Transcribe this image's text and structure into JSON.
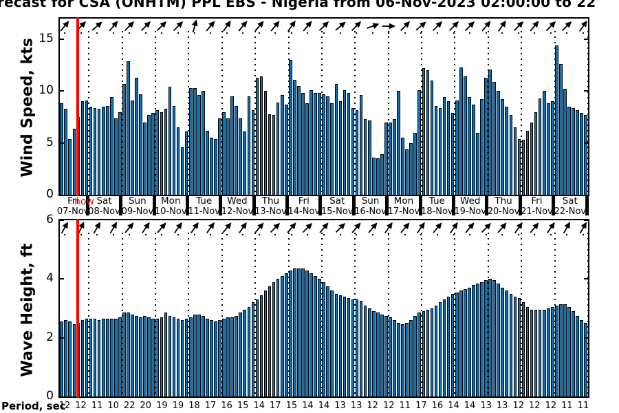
{
  "title": "recast for CSA (ONHTM) PPL EBS  - Nigeria from 06-Nov-2023 02:00:00 to 22",
  "now_marker": {
    "label": "now",
    "color": "#ff0000"
  },
  "colors": {
    "bar_fill": "#0e72b5",
    "bar_edge": "#000000",
    "axis": "#000000",
    "now_line": "#ff0000",
    "background": "#ffffff"
  },
  "x_axis": {
    "day_labels": [
      {
        "weekday": "Fri",
        "date": "07-Nov"
      },
      {
        "weekday": "Sat",
        "date": "08-Nov"
      },
      {
        "weekday": "Sun",
        "date": "09-Nov"
      },
      {
        "weekday": "Mon",
        "date": "10-Nov"
      },
      {
        "weekday": "Tue",
        "date": "11-Nov"
      },
      {
        "weekday": "Wed",
        "date": "12-Nov"
      },
      {
        "weekday": "Thu",
        "date": "13-Nov"
      },
      {
        "weekday": "Fri",
        "date": "14-Nov"
      },
      {
        "weekday": "Sat",
        "date": "15-Nov"
      },
      {
        "weekday": "Sun",
        "date": "16-Nov"
      },
      {
        "weekday": "Mon",
        "date": "17-Nov"
      },
      {
        "weekday": "Tue",
        "date": "18-Nov"
      },
      {
        "weekday": "Wed",
        "date": "19-Nov"
      },
      {
        "weekday": "Thu",
        "date": "20-Nov"
      },
      {
        "weekday": "Fri",
        "date": "21-Nov"
      },
      {
        "weekday": "Sat",
        "date": "22-Nov"
      }
    ]
  },
  "period_row": {
    "label": "Period, sec",
    "values": [
      12,
      12,
      11,
      10,
      22,
      20,
      19,
      19,
      18,
      17,
      16,
      15,
      14,
      17,
      15,
      14,
      14,
      13,
      13,
      12,
      12,
      11,
      17,
      16,
      14,
      14,
      13,
      13,
      12,
      12,
      12,
      11,
      11
    ]
  },
  "chart_data": [
    {
      "type": "bar",
      "name": "wind-speed",
      "ylabel": "Wind Speed, kts",
      "ylim": [
        0,
        17
      ],
      "yticks": [
        0,
        5,
        10,
        15
      ],
      "grid": "vertical-dotted-daily",
      "legend": "none",
      "bars_per_day": 8,
      "first_day_bars": 7,
      "time_step_hours": 3,
      "values": [
        8.8,
        8.3,
        5.4,
        6.4,
        7.5,
        9.0,
        9.1,
        8.5,
        8.4,
        8.3,
        8.5,
        8.6,
        9.4,
        7.4,
        8.0,
        10.7,
        12.9,
        9.1,
        11.3,
        9.7,
        7.0,
        7.7,
        7.9,
        8.2,
        8.0,
        8.3,
        10.4,
        8.6,
        6.5,
        4.6,
        6.1,
        10.3,
        10.3,
        9.6,
        10.0,
        6.2,
        5.5,
        5.4,
        7.4,
        8.0,
        7.4,
        9.5,
        8.6,
        7.4,
        6.1,
        9.5,
        8.2,
        11.3,
        11.4,
        10.0,
        7.8,
        7.7,
        8.9,
        9.6,
        8.7,
        13.0,
        11.1,
        10.5,
        9.8,
        8.8,
        10.1,
        9.8,
        9.8,
        9.7,
        9.5,
        8.8,
        10.7,
        9.0,
        10.1,
        9.8,
        8.4,
        8.2,
        9.6,
        7.3,
        7.2,
        3.6,
        3.5,
        3.9,
        7.0,
        7.0,
        7.3,
        10.0,
        5.5,
        4.4,
        5.0,
        6.0,
        10.1,
        12.2,
        12.0,
        11.0,
        8.6,
        8.4,
        9.4,
        9.0,
        7.9,
        9.1,
        12.3,
        11.4,
        9.4,
        8.7,
        6.0,
        9.2,
        11.3,
        12.1,
        10.9,
        10.0,
        9.2,
        8.5,
        7.7,
        6.5,
        5.4,
        5.3,
        6.2,
        7.0,
        8.0,
        9.3,
        10.0,
        8.8,
        9.0,
        14.4,
        12.6,
        10.2,
        8.5,
        8.4,
        8.2,
        7.9,
        7.7
      ],
      "direction_arrows_deg": [
        50,
        45,
        40,
        50,
        45,
        45,
        45,
        45,
        75,
        50,
        55,
        50,
        50,
        50,
        55,
        50,
        45,
        40,
        45,
        20,
        0,
        45,
        40,
        45,
        45,
        45,
        50,
        55,
        45,
        50,
        45,
        45,
        55
      ]
    },
    {
      "type": "bar",
      "name": "wave-height",
      "ylabel": "Wave Height, ft",
      "ylim": [
        0,
        6
      ],
      "yticks": [
        0,
        2,
        4,
        6
      ],
      "grid": "vertical-dotted-daily",
      "legend": "none",
      "bars_per_day": 8,
      "first_day_bars": 7,
      "time_step_hours": 3,
      "values": [
        2.55,
        2.6,
        2.55,
        2.45,
        2.5,
        2.6,
        2.65,
        2.65,
        2.65,
        2.6,
        2.65,
        2.65,
        2.65,
        2.65,
        2.7,
        2.85,
        2.85,
        2.8,
        2.75,
        2.7,
        2.75,
        2.7,
        2.65,
        2.65,
        2.7,
        2.85,
        2.75,
        2.7,
        2.65,
        2.6,
        2.65,
        2.7,
        2.8,
        2.8,
        2.75,
        2.65,
        2.6,
        2.55,
        2.6,
        2.65,
        2.7,
        2.7,
        2.75,
        2.85,
        2.95,
        3.05,
        3.2,
        3.3,
        3.45,
        3.6,
        3.75,
        3.9,
        4.0,
        4.1,
        4.2,
        4.3,
        4.35,
        4.35,
        4.35,
        4.3,
        4.2,
        4.1,
        4.0,
        3.9,
        3.75,
        3.6,
        3.5,
        3.45,
        3.4,
        3.35,
        3.3,
        3.3,
        3.25,
        3.1,
        3.0,
        2.9,
        2.85,
        2.8,
        2.75,
        2.7,
        2.6,
        2.5,
        2.45,
        2.5,
        2.6,
        2.75,
        2.85,
        2.9,
        2.95,
        3.0,
        3.1,
        3.2,
        3.3,
        3.4,
        3.5,
        3.55,
        3.6,
        3.65,
        3.7,
        3.8,
        3.85,
        3.9,
        3.95,
        4.0,
        3.95,
        3.85,
        3.7,
        3.6,
        3.5,
        3.4,
        3.35,
        3.2,
        3.05,
        2.95,
        2.95,
        2.95,
        2.95,
        3.0,
        3.05,
        3.1,
        3.15,
        3.15,
        3.05,
        2.9,
        2.75,
        2.6,
        2.5
      ],
      "direction_arrows_deg": [
        60,
        65,
        60,
        60,
        50,
        55,
        50,
        55,
        55,
        55,
        50,
        55,
        50,
        45,
        50,
        45,
        50,
        45,
        50,
        50,
        55,
        50,
        55,
        50,
        55,
        50,
        45,
        50,
        55,
        50,
        55,
        60,
        60
      ]
    }
  ]
}
